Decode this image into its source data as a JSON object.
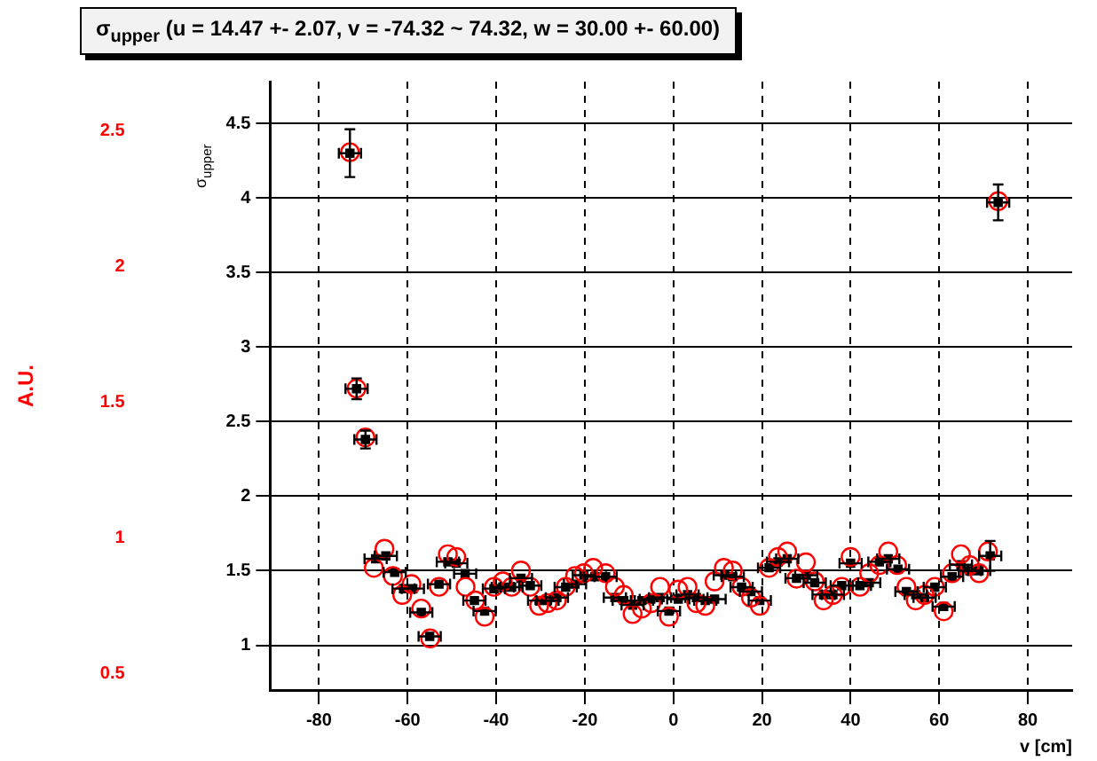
{
  "chart_data": {
    "type": "scatter",
    "title": "σ$_{upper}$ (u = 14.47 +- 2.07, v = -74.32 ~ 74.32, w = 30.00 +- 60.00)",
    "xlabel": "v [cm]",
    "ylabel": "σ$_{upper}$",
    "y2label": "A.U.",
    "xlim": [
      -91,
      90
    ],
    "xticks": [
      -80,
      -60,
      -40,
      -20,
      0,
      20,
      40,
      60,
      80
    ],
    "ylim": [
      0.7,
      4.78
    ],
    "yticks": [
      1,
      1.5,
      2,
      2.5,
      3,
      3.5,
      4,
      4.5
    ],
    "y2lim": [
      0.44,
      2.68
    ],
    "y2ticks": [
      0.5,
      1,
      1.5,
      2,
      2.5
    ],
    "grid": true,
    "legend": false,
    "series": [
      {
        "color": "#000000",
        "marker": "square",
        "x": [
          -73,
          -71.5,
          -69.5,
          -67.2,
          -64.9,
          -62.9,
          -60.9,
          -58.8,
          -56.9,
          -55,
          -52.9,
          -50.9,
          -49,
          -47,
          -44.9,
          -42.6,
          -40.5,
          -38.5,
          -36.5,
          -34.4,
          -32.3,
          -30.3,
          -28.4,
          -26.3,
          -24.3,
          -22.2,
          -20.2,
          -17.7,
          -15.3,
          -13.2,
          -11.2,
          -9.2,
          -7.1,
          -5.1,
          -3,
          -1,
          1.1,
          3.2,
          5.2,
          7.2,
          9.3,
          11.6,
          13.4,
          15.4,
          17.5,
          19.5,
          21.6,
          23.6,
          25.7,
          27.8,
          30,
          31.9,
          33.9,
          36,
          38,
          40,
          42.1,
          44.2,
          46.5,
          48.5,
          50.7,
          52.6,
          54.7,
          56.7,
          59,
          61,
          62.9,
          64.9,
          66.9,
          69,
          71.5,
          73.3
        ],
        "values": [
          4.3,
          2.72,
          2.38,
          1.58,
          1.6,
          1.49,
          1.38,
          1.38,
          1.22,
          1.06,
          1.41,
          1.56,
          1.55,
          1.48,
          1.3,
          1.23,
          1.38,
          1.39,
          1.39,
          1.45,
          1.4,
          1.3,
          1.3,
          1.32,
          1.39,
          1.41,
          1.47,
          1.46,
          1.46,
          1.32,
          1.3,
          1.27,
          1.3,
          1.31,
          1.32,
          1.23,
          1.31,
          1.34,
          1.32,
          1.3,
          1.31,
          1.47,
          1.46,
          1.39,
          1.36,
          1.3,
          1.52,
          1.56,
          1.58,
          1.45,
          1.47,
          1.42,
          1.34,
          1.34,
          1.4,
          1.55,
          1.4,
          1.42,
          1.56,
          1.58,
          1.51,
          1.36,
          1.34,
          1.32,
          1.39,
          1.26,
          1.46,
          1.54,
          1.5,
          1.5,
          1.6,
          3.97
        ],
        "errors": [
          0.16,
          0.07,
          0.06,
          null,
          null,
          null,
          null,
          null,
          null,
          null,
          null,
          null,
          null,
          null,
          null,
          null,
          null,
          null,
          null,
          null,
          null,
          null,
          null,
          null,
          null,
          null,
          null,
          null,
          null,
          null,
          null,
          null,
          null,
          null,
          null,
          null,
          null,
          null,
          null,
          null,
          null,
          null,
          null,
          null,
          null,
          null,
          null,
          null,
          null,
          null,
          null,
          null,
          null,
          null,
          null,
          null,
          null,
          null,
          null,
          null,
          null,
          null,
          null,
          null,
          null,
          null,
          null,
          null,
          null,
          null,
          0.1,
          0.12
        ],
        "xerrors": [
          2.5,
          2.5,
          2.5,
          2.5,
          2.5,
          2.5,
          2.5,
          2.5,
          2.5,
          2.5,
          2.5,
          2.5,
          2.5,
          2.5,
          2.5,
          2.5,
          2.5,
          2.5,
          2.5,
          2.5,
          2.5,
          2.5,
          2.5,
          2.5,
          2.5,
          2.5,
          2.5,
          2.5,
          2.5,
          2.5,
          2.5,
          2.5,
          2.5,
          2.5,
          2.5,
          2.5,
          2.5,
          2.5,
          2.5,
          2.5,
          2.5,
          2.5,
          2.5,
          2.5,
          2.5,
          2.5,
          2.5,
          2.5,
          2.5,
          2.5,
          2.5,
          2.5,
          2.5,
          2.5,
          2.5,
          2.5,
          2.5,
          2.5,
          2.5,
          2.5,
          2.5,
          2.5,
          2.5,
          2.5,
          2.5,
          2.5,
          2.5,
          2.5,
          2.5,
          2.5,
          2.5,
          2.5
        ]
      },
      {
        "color": "#ff0000",
        "marker": "circle",
        "axis": "y2",
        "x": [
          -73,
          -71.5,
          -69.5,
          -67.6,
          -65.2,
          -63.3,
          -61.2,
          -59.1,
          -56.9,
          -54.9,
          -52.9,
          -50.9,
          -49,
          -46.9,
          -44.7,
          -42.6,
          -40.5,
          -38.5,
          -36.5,
          -34.4,
          -32.3,
          -30.3,
          -28.4,
          -26.3,
          -24.3,
          -22.2,
          -20.2,
          -18.1,
          -15.3,
          -13.2,
          -11.2,
          -9.2,
          -7.1,
          -5,
          -3,
          -1,
          1.1,
          3.2,
          5.2,
          7.2,
          9.3,
          11.4,
          13.4,
          15.4,
          17.5,
          19.5,
          21.6,
          23.6,
          25.7,
          27.8,
          29.9,
          31.9,
          33.9,
          36,
          38,
          40,
          42.1,
          44.2,
          46.5,
          48.5,
          50.5,
          52.6,
          54.7,
          56.7,
          59,
          61,
          62.9,
          64.9,
          66.9,
          69,
          71,
          73.3
        ],
        "values": [
          2.42,
          1.55,
          1.37,
          0.89,
          0.96,
          0.86,
          0.79,
          0.83,
          0.74,
          0.63,
          0.82,
          0.94,
          0.93,
          0.82,
          0.77,
          0.71,
          0.82,
          0.84,
          0.82,
          0.88,
          0.82,
          0.75,
          0.76,
          0.77,
          0.82,
          0.86,
          0.87,
          0.89,
          0.87,
          0.82,
          0.79,
          0.72,
          0.74,
          0.76,
          0.82,
          0.71,
          0.81,
          0.82,
          0.76,
          0.75,
          0.84,
          0.89,
          0.88,
          0.82,
          0.78,
          0.75,
          0.89,
          0.93,
          0.95,
          0.85,
          0.91,
          0.84,
          0.77,
          0.79,
          0.82,
          0.93,
          0.82,
          0.87,
          0.9,
          0.95,
          0.9,
          0.82,
          0.77,
          0.79,
          0.82,
          0.73,
          0.87,
          0.94,
          0.9,
          0.87,
          0.95,
          2.24
        ]
      }
    ]
  }
}
